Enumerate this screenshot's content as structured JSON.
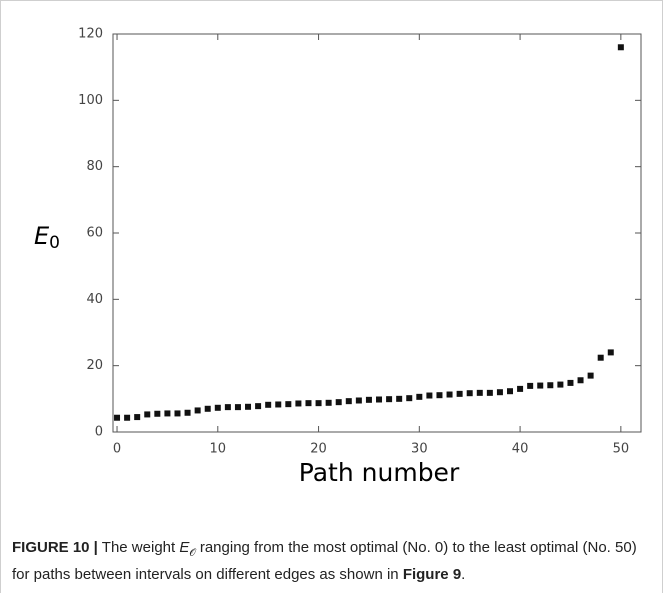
{
  "chart_data": {
    "type": "scatter",
    "xlabel": "Path number",
    "ylabel": "E",
    "ylabel_subscript": "0",
    "x": [
      0,
      1,
      2,
      3,
      4,
      5,
      6,
      7,
      8,
      9,
      10,
      11,
      12,
      13,
      14,
      15,
      16,
      17,
      18,
      19,
      20,
      21,
      22,
      23,
      24,
      25,
      26,
      27,
      28,
      29,
      30,
      31,
      32,
      33,
      34,
      35,
      36,
      37,
      38,
      39,
      40,
      41,
      42,
      43,
      44,
      45,
      46,
      47,
      48,
      49,
      50
    ],
    "values": [
      4.3,
      4.3,
      4.5,
      5.3,
      5.5,
      5.6,
      5.6,
      5.8,
      6.5,
      7.0,
      7.3,
      7.5,
      7.5,
      7.6,
      7.8,
      8.2,
      8.3,
      8.4,
      8.6,
      8.7,
      8.7,
      8.8,
      9.0,
      9.3,
      9.5,
      9.7,
      9.8,
      9.9,
      10.0,
      10.2,
      10.6,
      11.0,
      11.1,
      11.3,
      11.5,
      11.7,
      11.8,
      11.8,
      12.0,
      12.3,
      13.0,
      13.9,
      14.0,
      14.1,
      14.3,
      14.8,
      15.6,
      17.0,
      22.4,
      24.0,
      116
    ],
    "color": "#111111",
    "xlim": [
      -0.4,
      52
    ],
    "ylim": [
      0,
      120
    ],
    "xticks": [
      0,
      10,
      20,
      30,
      40,
      50
    ],
    "yticks": [
      0,
      20,
      40,
      60,
      80,
      100,
      120
    ]
  },
  "caption": {
    "label": "FIGURE 10 |",
    "text_before": "The weight",
    "symbol": "E",
    "subscript": "𝒪",
    "text_middle": "ranging from the most optimal (No. 0) to the least optimal (No. 50) for paths between intervals on different edges as shown in",
    "ref": "Figure 9",
    "end": "."
  }
}
